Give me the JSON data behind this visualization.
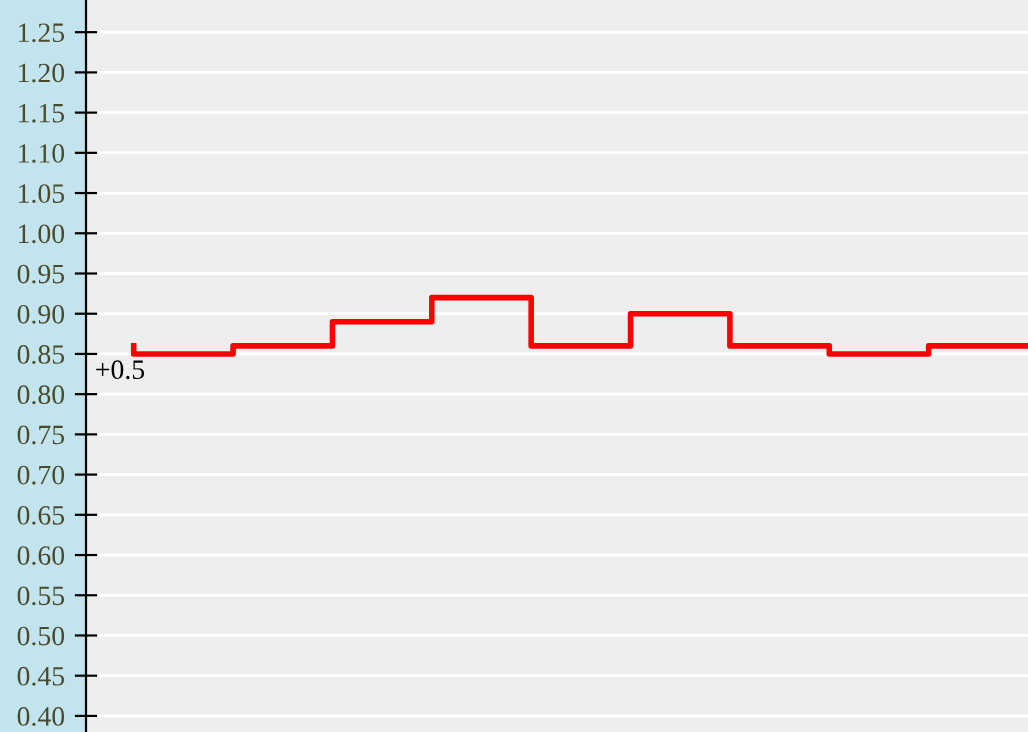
{
  "chart_data": {
    "type": "step",
    "categories": [
      null,
      null,
      null,
      null,
      null,
      null,
      null,
      null,
      null,
      null
    ],
    "series": [
      {
        "color": "#ff0000",
        "values": [
          0.86,
          0.85,
          0.86,
          0.89,
          0.92,
          0.86,
          0.9,
          0.86,
          0.85,
          0.86
        ]
      }
    ],
    "ylim": [
      0.38,
      1.29
    ],
    "yticks": [
      {
        "value": 0.4,
        "label": "0.40"
      },
      {
        "value": 0.45,
        "label": "0.45"
      },
      {
        "value": 0.5,
        "label": "0.50"
      },
      {
        "value": 0.55,
        "label": "0.55"
      },
      {
        "value": 0.6,
        "label": "0.60"
      },
      {
        "value": 0.65,
        "label": "0.65"
      },
      {
        "value": 0.7,
        "label": "0.70"
      },
      {
        "value": 0.75,
        "label": "0.75"
      },
      {
        "value": 0.8,
        "label": "0.80"
      },
      {
        "value": 0.85,
        "label": "0.85"
      },
      {
        "value": 0.9,
        "label": "0.90"
      },
      {
        "value": 0.95,
        "label": "0.95"
      },
      {
        "value": 1.0,
        "label": "1.00"
      },
      {
        "value": 1.05,
        "label": "1.05"
      },
      {
        "value": 1.1,
        "label": "1.10"
      },
      {
        "value": 1.15,
        "label": "1.15"
      },
      {
        "value": 1.2,
        "label": "1.20"
      },
      {
        "value": 1.25,
        "label": "1.25"
      }
    ],
    "grid": "y",
    "tick_labels": "y",
    "annotations": [
      "+0.5"
    ]
  }
}
